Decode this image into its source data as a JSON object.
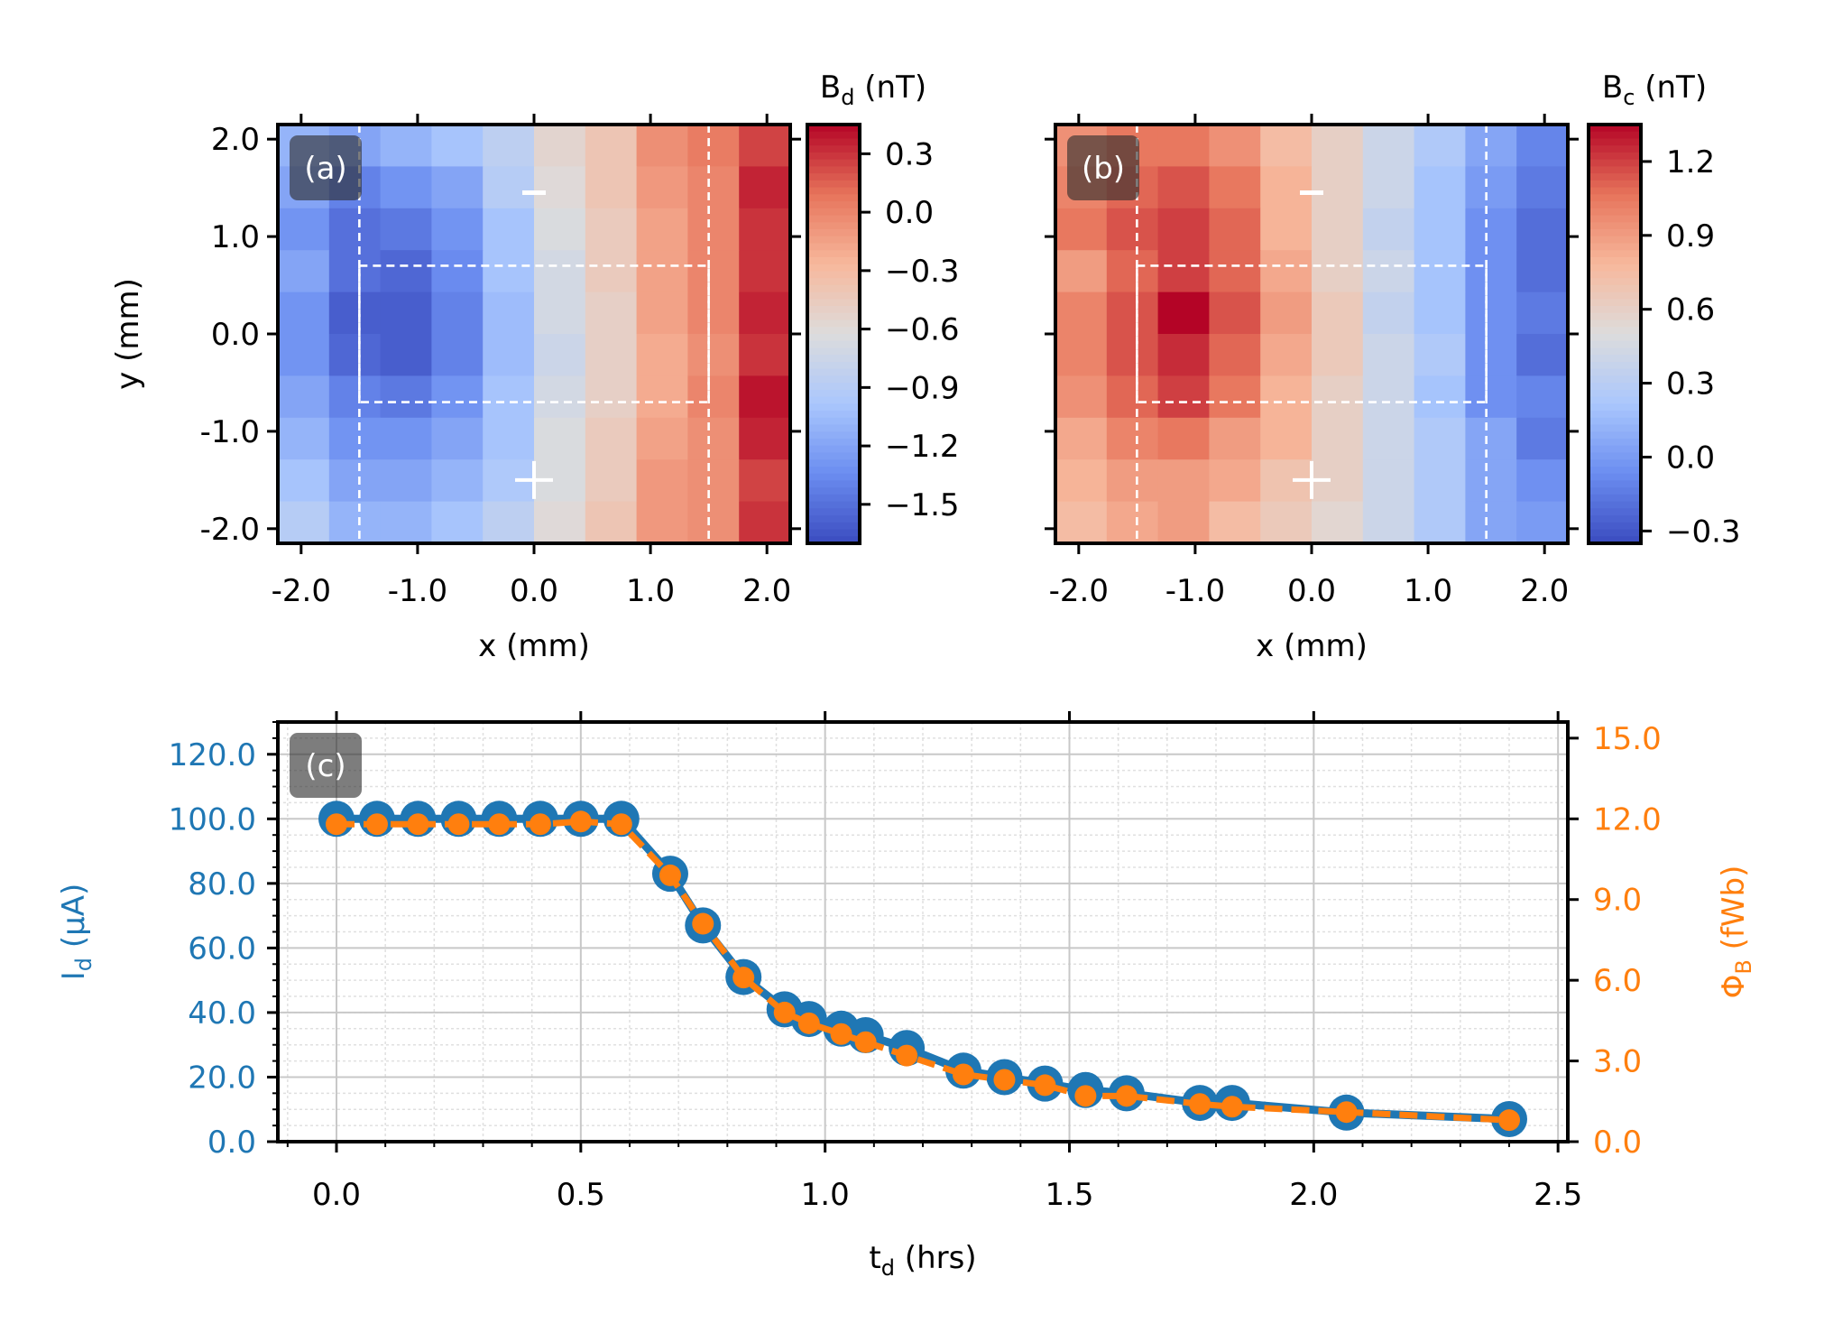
{
  "colors": {
    "cmap": [
      "#3b4cc0",
      "#6b8df0",
      "#aac7fd",
      "#dddcdc",
      "#f7b89c",
      "#e7745b",
      "#b40426"
    ],
    "blue": "#1f77b4",
    "orange": "#ff7f0e",
    "frame": "#000000",
    "white": "#ffffff",
    "grid_major": "#c8c8c8",
    "grid_minor": "#e0e0e0"
  },
  "chart_data": [
    {
      "type": "heatmap",
      "panel": "(a)",
      "colorbar_label": "B",
      "colorbar_sub": "d",
      "colorbar_unit": " (nT)",
      "xlabel": "x (mm)",
      "ylabel": "y (mm)",
      "xlim": [
        -2.2,
        2.2
      ],
      "ylim": [
        -2.15,
        2.15
      ],
      "xticks": [
        -2.0,
        -1.0,
        0.0,
        1.0,
        2.0
      ],
      "xtick_labels": [
        "-2.0",
        "-1.0",
        "0.0",
        "1.0",
        "2.0"
      ],
      "yticks": [
        2.0,
        1.0,
        0.0,
        -1.0,
        -2.0
      ],
      "ytick_labels": [
        "2.0",
        "1.0",
        "0.0",
        "-1.0",
        "-2.0"
      ],
      "cbar_range": [
        -1.7,
        0.45
      ],
      "cbar_ticks": [
        0.3,
        0.0,
        -0.3,
        -0.6,
        -0.9,
        -1.2,
        -1.5
      ],
      "cbar_tick_labels": [
        "0.3",
        "0.0",
        "−0.3",
        "−0.6",
        "−0.9",
        "−1.2",
        "−1.5"
      ],
      "minus_label": "-",
      "plus_label": "+",
      "rect": {
        "x": [
          -1.5,
          1.5
        ],
        "y": [
          -0.7,
          0.7
        ]
      },
      "vlines": [
        -1.5,
        1.5
      ],
      "marker_x": 0.0,
      "minus_y": 1.45,
      "plus_y": -1.5,
      "grid": [
        [
          -1.1,
          -1.2,
          -1.1,
          -1.0,
          -0.85,
          -0.55,
          -0.4,
          -0.05,
          0.05,
          0.25
        ],
        [
          -1.2,
          -1.4,
          -1.3,
          -1.2,
          -0.9,
          -0.6,
          -0.4,
          -0.1,
          0.0,
          0.35
        ],
        [
          -1.3,
          -1.5,
          -1.45,
          -1.3,
          -1.0,
          -0.65,
          -0.45,
          -0.15,
          0.0,
          0.3
        ],
        [
          -1.2,
          -1.5,
          -1.55,
          -1.35,
          -1.0,
          -0.7,
          -0.45,
          -0.15,
          0.0,
          0.3
        ],
        [
          -1.3,
          -1.6,
          -1.6,
          -1.4,
          -1.05,
          -0.7,
          -0.5,
          -0.15,
          0.0,
          0.35
        ],
        [
          -1.3,
          -1.55,
          -1.6,
          -1.4,
          -1.05,
          -0.75,
          -0.5,
          -0.2,
          -0.05,
          0.3
        ],
        [
          -1.2,
          -1.4,
          -1.45,
          -1.3,
          -1.0,
          -0.7,
          -0.5,
          -0.2,
          0.0,
          0.4
        ],
        [
          -1.1,
          -1.3,
          -1.3,
          -1.2,
          -1.0,
          -0.65,
          -0.45,
          -0.15,
          -0.05,
          0.35
        ],
        [
          -1.0,
          -1.2,
          -1.2,
          -1.1,
          -0.95,
          -0.65,
          -0.45,
          -0.1,
          -0.05,
          0.25
        ],
        [
          -0.9,
          -1.1,
          -1.1,
          -1.0,
          -0.85,
          -0.6,
          -0.4,
          -0.1,
          -0.05,
          0.3
        ]
      ]
    },
    {
      "type": "heatmap",
      "panel": "(b)",
      "colorbar_label": "B",
      "colorbar_sub": "c",
      "colorbar_unit": " (nT)",
      "xlabel": "x (mm)",
      "xlim": [
        -2.2,
        2.2
      ],
      "ylim": [
        -2.15,
        2.15
      ],
      "xticks": [
        -2.0,
        -1.0,
        0.0,
        1.0,
        2.0
      ],
      "xtick_labels": [
        "-2.0",
        "-1.0",
        "0.0",
        "1.0",
        "2.0"
      ],
      "cbar_range": [
        -0.35,
        1.35
      ],
      "cbar_ticks": [
        1.2,
        0.9,
        0.6,
        0.3,
        0.0,
        -0.3
      ],
      "cbar_tick_labels": [
        "1.2",
        "0.9",
        "0.6",
        "0.3",
        "0.0",
        "−0.3"
      ],
      "minus_label": "-",
      "plus_label": "+",
      "rect": {
        "x": [
          -1.5,
          1.5
        ],
        "y": [
          -0.7,
          0.7
        ]
      },
      "vlines": [
        -1.5,
        1.5
      ],
      "marker_x": 0.0,
      "minus_y": 1.45,
      "plus_y": -1.5,
      "grid": [
        [
          0.95,
          1.05,
          1.05,
          0.95,
          0.75,
          0.6,
          0.4,
          0.25,
          0.05,
          -0.1
        ],
        [
          1.0,
          1.1,
          1.15,
          1.05,
          0.8,
          0.6,
          0.4,
          0.2,
          0.0,
          -0.15
        ],
        [
          1.05,
          1.15,
          1.2,
          1.1,
          0.8,
          0.6,
          0.35,
          0.2,
          -0.05,
          -0.2
        ],
        [
          0.9,
          1.1,
          1.2,
          1.1,
          0.85,
          0.6,
          0.4,
          0.2,
          -0.05,
          -0.2
        ],
        [
          1.0,
          1.15,
          1.35,
          1.15,
          0.9,
          0.65,
          0.35,
          0.2,
          -0.05,
          -0.15
        ],
        [
          1.0,
          1.15,
          1.25,
          1.1,
          0.85,
          0.65,
          0.4,
          0.25,
          -0.05,
          -0.2
        ],
        [
          0.95,
          1.1,
          1.2,
          1.05,
          0.8,
          0.6,
          0.4,
          0.2,
          -0.05,
          -0.1
        ],
        [
          0.85,
          1.0,
          1.05,
          0.9,
          0.8,
          0.6,
          0.4,
          0.25,
          0.05,
          -0.15
        ],
        [
          0.8,
          0.9,
          0.9,
          0.85,
          0.7,
          0.6,
          0.4,
          0.25,
          0.05,
          -0.05
        ],
        [
          0.75,
          0.85,
          0.9,
          0.75,
          0.65,
          0.55,
          0.4,
          0.25,
          0.05,
          0.0
        ]
      ]
    },
    {
      "type": "line",
      "panel": "(c)",
      "xlabel": "t",
      "xlabel_sub": "d",
      "xlabel_unit": " (hrs)",
      "ylabel_left": "I",
      "ylabel_left_sub": "d",
      "ylabel_left_unit": " (μA)",
      "ylabel_right": "Φ",
      "ylabel_right_sub": "B",
      "ylabel_right_unit": " (fWb)",
      "xlim": [
        -0.12,
        2.52
      ],
      "ylim_left": [
        0,
        130
      ],
      "ylim_right": [
        0,
        15.6
      ],
      "xticks": [
        0.0,
        0.5,
        1.0,
        1.5,
        2.0,
        2.5
      ],
      "xtick_labels": [
        "0.0",
        "0.5",
        "1.0",
        "1.5",
        "2.0",
        "2.5"
      ],
      "yticks_left": [
        0,
        20,
        40,
        60,
        80,
        100,
        120
      ],
      "ytick_labels_left": [
        "0.0",
        "20.0",
        "40.0",
        "60.0",
        "80.0",
        "100.0",
        "120.0"
      ],
      "yticks_right": [
        0,
        3,
        6,
        9,
        12,
        15
      ],
      "ytick_labels_right": [
        "0.0",
        "3.0",
        "6.0",
        "9.0",
        "12.0",
        "15.0"
      ],
      "grid": true,
      "series": [
        {
          "name": "I_d",
          "axis": "left",
          "x": [
            0.0,
            0.083,
            0.167,
            0.25,
            0.333,
            0.417,
            0.5,
            0.583,
            0.683,
            0.75,
            0.833,
            0.917,
            0.967,
            1.033,
            1.083,
            1.167,
            1.283,
            1.367,
            1.45,
            1.533,
            1.617,
            1.767,
            1.833,
            2.067,
            2.4
          ],
          "values": [
            100,
            100,
            100,
            100,
            100,
            100,
            100,
            100,
            83,
            67,
            51,
            41,
            38,
            35,
            33,
            29,
            22,
            20,
            18,
            16,
            15,
            12,
            12,
            9,
            7
          ]
        },
        {
          "name": "Φ_B",
          "axis": "right",
          "x": [
            0.0,
            0.083,
            0.167,
            0.25,
            0.333,
            0.417,
            0.5,
            0.583,
            0.683,
            0.75,
            0.833,
            0.917,
            0.967,
            1.033,
            1.083,
            1.167,
            1.283,
            1.367,
            1.45,
            1.533,
            1.617,
            1.767,
            1.833,
            2.067,
            2.4
          ],
          "values": [
            11.8,
            11.8,
            11.8,
            11.8,
            11.8,
            11.8,
            11.9,
            11.8,
            9.9,
            8.1,
            6.1,
            4.8,
            4.4,
            4.0,
            3.7,
            3.2,
            2.5,
            2.3,
            2.1,
            1.7,
            1.7,
            1.4,
            1.3,
            1.1,
            0.8
          ]
        }
      ]
    }
  ]
}
